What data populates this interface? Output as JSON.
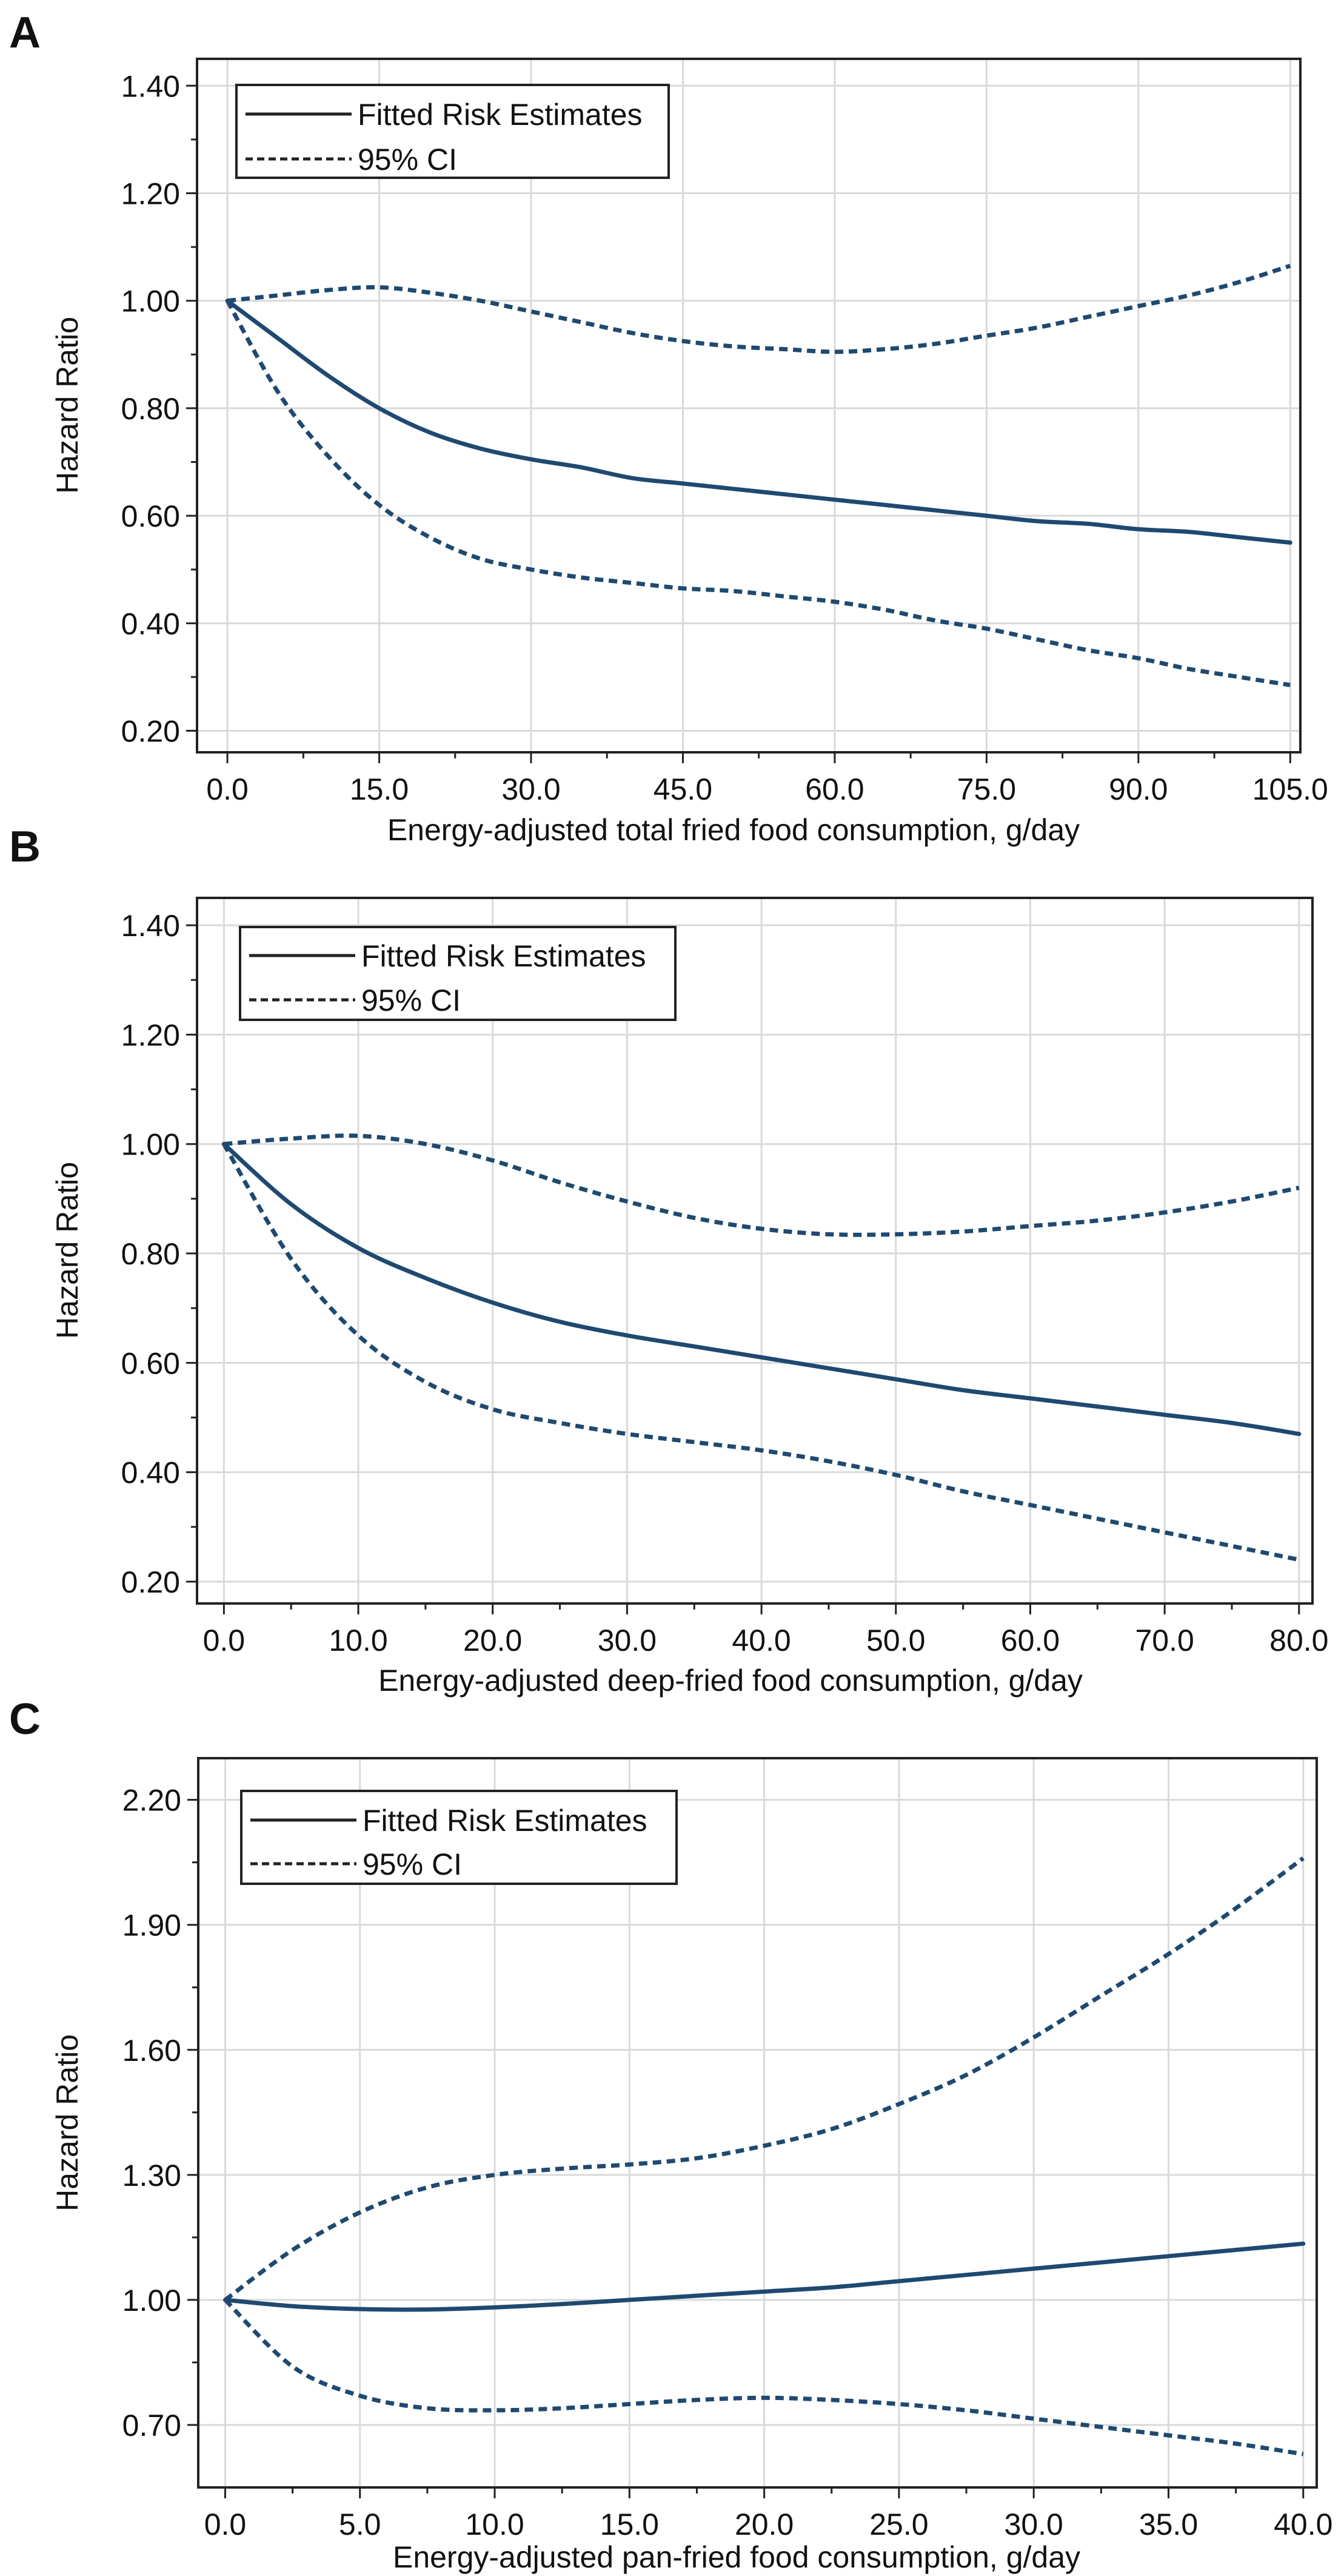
{
  "style": {
    "line_color": "#1f4970",
    "grid_color": "#d9d9d9",
    "frame_color": "#222222"
  },
  "chart_data": [
    {
      "panel": "A",
      "type": "line",
      "title": "",
      "xlabel": "Energy-adjusted total fried food consumption, g/day",
      "ylabel": "Hazard Ratio",
      "xlim": [
        -3,
        106
      ],
      "ylim": [
        0.16,
        1.45
      ],
      "x_ticks": [
        0,
        15,
        30,
        45,
        60,
        75,
        90,
        105
      ],
      "x_tick_labels": [
        "0.0",
        "15.0",
        "30.0",
        "45.0",
        "60.0",
        "75.0",
        "90.0",
        "105.0"
      ],
      "y_ticks": [
        0.2,
        0.4,
        0.6,
        0.8,
        1.0,
        1.2,
        1.4
      ],
      "y_tick_labels": [
        "0.20",
        "0.40",
        "0.60",
        "0.80",
        "1.00",
        "1.20",
        "1.40"
      ],
      "grid": true,
      "legend": {
        "position": "top-left",
        "entries": [
          "Fitted Risk Estimates",
          "95% CI"
        ]
      },
      "series": [
        {
          "name": "Fitted Risk Estimates",
          "style": "solid",
          "x": [
            0,
            5,
            10,
            15,
            20,
            25,
            30,
            35,
            40,
            45,
            50,
            55,
            60,
            65,
            70,
            75,
            80,
            85,
            90,
            95,
            100,
            105
          ],
          "y": [
            1.0,
            0.93,
            0.86,
            0.8,
            0.755,
            0.725,
            0.705,
            0.69,
            0.67,
            0.66,
            0.65,
            0.64,
            0.63,
            0.62,
            0.61,
            0.6,
            0.59,
            0.585,
            0.575,
            0.57,
            0.56,
            0.55
          ]
        },
        {
          "name": "95% CI upper",
          "style": "dashed",
          "x": [
            0,
            5,
            10,
            15,
            20,
            25,
            30,
            35,
            40,
            45,
            50,
            55,
            60,
            65,
            70,
            75,
            80,
            85,
            90,
            95,
            100,
            105
          ],
          "y": [
            1.0,
            1.01,
            1.02,
            1.025,
            1.015,
            1.0,
            0.98,
            0.96,
            0.94,
            0.925,
            0.915,
            0.91,
            0.905,
            0.91,
            0.92,
            0.935,
            0.95,
            0.97,
            0.99,
            1.01,
            1.035,
            1.065
          ]
        },
        {
          "name": "95% CI lower",
          "style": "dashed",
          "x": [
            0,
            5,
            10,
            15,
            20,
            25,
            30,
            35,
            40,
            45,
            50,
            55,
            60,
            65,
            70,
            75,
            80,
            85,
            90,
            95,
            100,
            105
          ],
          "y": [
            1.0,
            0.83,
            0.71,
            0.62,
            0.56,
            0.52,
            0.5,
            0.485,
            0.475,
            0.465,
            0.46,
            0.45,
            0.44,
            0.425,
            0.405,
            0.39,
            0.37,
            0.35,
            0.335,
            0.315,
            0.3,
            0.285
          ]
        }
      ]
    },
    {
      "panel": "B",
      "type": "line",
      "title": "",
      "xlabel": "Energy-adjusted deep-fried food consumption, g/day",
      "ylabel": "Hazard Ratio",
      "xlim": [
        -2,
        81
      ],
      "ylim": [
        0.16,
        1.45
      ],
      "x_ticks": [
        0,
        10,
        20,
        30,
        40,
        50,
        60,
        70,
        80
      ],
      "x_tick_labels": [
        "0.0",
        "10.0",
        "20.0",
        "30.0",
        "40.0",
        "50.0",
        "60.0",
        "70.0",
        "80.0"
      ],
      "y_ticks": [
        0.2,
        0.4,
        0.6,
        0.8,
        1.0,
        1.2,
        1.4
      ],
      "y_tick_labels": [
        "0.20",
        "0.40",
        "0.60",
        "0.80",
        "1.00",
        "1.20",
        "1.40"
      ],
      "grid": true,
      "legend": {
        "position": "top-left",
        "entries": [
          "Fitted Risk Estimates",
          "95% CI"
        ]
      },
      "series": [
        {
          "name": "Fitted Risk Estimates",
          "style": "solid",
          "x": [
            0,
            5,
            10,
            15,
            20,
            25,
            30,
            35,
            40,
            45,
            50,
            55,
            60,
            65,
            70,
            75,
            80
          ],
          "y": [
            1.0,
            0.89,
            0.81,
            0.755,
            0.71,
            0.675,
            0.65,
            0.63,
            0.61,
            0.59,
            0.57,
            0.55,
            0.535,
            0.52,
            0.505,
            0.49,
            0.47
          ]
        },
        {
          "name": "95% CI upper",
          "style": "dashed",
          "x": [
            0,
            5,
            10,
            15,
            20,
            25,
            30,
            35,
            40,
            45,
            50,
            55,
            60,
            65,
            70,
            75,
            80
          ],
          "y": [
            1.0,
            1.01,
            1.015,
            1.0,
            0.97,
            0.93,
            0.895,
            0.865,
            0.845,
            0.835,
            0.835,
            0.84,
            0.85,
            0.86,
            0.875,
            0.895,
            0.92
          ]
        },
        {
          "name": "95% CI lower",
          "style": "dashed",
          "x": [
            0,
            5,
            10,
            15,
            20,
            25,
            30,
            35,
            40,
            45,
            50,
            55,
            60,
            65,
            70,
            75,
            80
          ],
          "y": [
            1.0,
            0.79,
            0.65,
            0.565,
            0.515,
            0.49,
            0.47,
            0.455,
            0.44,
            0.42,
            0.395,
            0.365,
            0.34,
            0.315,
            0.29,
            0.265,
            0.24
          ]
        }
      ]
    },
    {
      "panel": "C",
      "type": "line",
      "title": "",
      "xlabel": "Energy-adjusted pan-fried food consumption, g/day",
      "ylabel": "Hazard Ratio",
      "xlim": [
        -1,
        40.5
      ],
      "ylim": [
        0.55,
        2.3
      ],
      "x_ticks": [
        0,
        5,
        10,
        15,
        20,
        25,
        30,
        35,
        40
      ],
      "x_tick_labels": [
        "0.0",
        "5.0",
        "10.0",
        "15.0",
        "20.0",
        "25.0",
        "30.0",
        "35.0",
        "40.0"
      ],
      "y_ticks": [
        0.7,
        1.0,
        1.3,
        1.6,
        1.9,
        2.2
      ],
      "y_tick_labels": [
        "0.70",
        "1.00",
        "1.30",
        "1.60",
        "1.90",
        "2.20"
      ],
      "grid": true,
      "legend": {
        "position": "top-left",
        "entries": [
          "Fitted Risk Estimates",
          "95% CI"
        ]
      },
      "series": [
        {
          "name": "Fitted Risk Estimates",
          "style": "solid",
          "x": [
            0,
            2.5,
            5,
            7.5,
            10,
            12.5,
            15,
            17.5,
            20,
            22.5,
            25,
            27.5,
            30,
            32.5,
            35,
            37.5,
            40
          ],
          "y": [
            1.0,
            0.985,
            0.978,
            0.977,
            0.982,
            0.99,
            1.0,
            1.01,
            1.02,
            1.03,
            1.045,
            1.06,
            1.075,
            1.09,
            1.105,
            1.12,
            1.135
          ]
        },
        {
          "name": "95% CI upper",
          "style": "dashed",
          "x": [
            0,
            2.5,
            5,
            7.5,
            10,
            12.5,
            15,
            17.5,
            20,
            22.5,
            25,
            27.5,
            30,
            32.5,
            35,
            37.5,
            40
          ],
          "y": [
            1.0,
            1.12,
            1.21,
            1.27,
            1.3,
            1.315,
            1.325,
            1.34,
            1.37,
            1.41,
            1.47,
            1.54,
            1.63,
            1.73,
            1.83,
            1.94,
            2.06
          ]
        },
        {
          "name": "95% CI lower",
          "style": "dashed",
          "x": [
            0,
            2.5,
            5,
            7.5,
            10,
            12.5,
            15,
            17.5,
            20,
            22.5,
            25,
            27.5,
            30,
            32.5,
            35,
            37.5,
            40
          ],
          "y": [
            1.0,
            0.84,
            0.77,
            0.74,
            0.735,
            0.74,
            0.75,
            0.76,
            0.765,
            0.76,
            0.75,
            0.735,
            0.715,
            0.695,
            0.675,
            0.655,
            0.63
          ]
        }
      ]
    }
  ]
}
